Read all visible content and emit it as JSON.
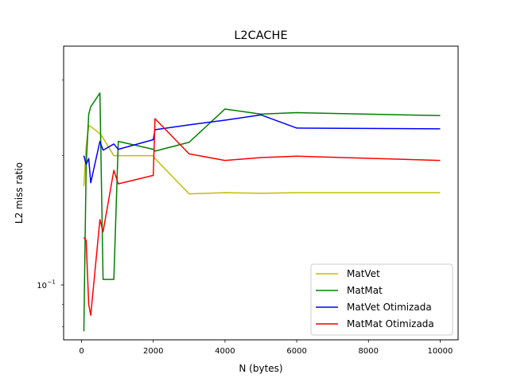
{
  "chart_data": {
    "type": "line",
    "title": "L2CACHE",
    "xlabel": "N (bytes)",
    "ylabel": "L2 miss ratio",
    "xlim": [
      -500,
      10500
    ],
    "ylim": [
      0.0745,
      0.36
    ],
    "yscale": "log",
    "x_ticks": [
      0,
      2000,
      4000,
      6000,
      8000,
      10000
    ],
    "x_tick_labels": [
      "0",
      "2000",
      "4000",
      "6000",
      "8000",
      "10000"
    ],
    "y_major_ticks": [
      0.1
    ],
    "y_major_tick_labels": [
      "10",
      "−1"
    ],
    "y_minor_ticks": [
      0.08,
      0.09,
      0.2,
      0.3
    ],
    "grid": false,
    "legend_position": "lower right",
    "x": [
      64,
      128,
      200,
      256,
      512,
      600,
      900,
      1024,
      2000,
      2048,
      3000,
      4000,
      5000,
      6000,
      10000
    ],
    "series": [
      {
        "name": "MatVet",
        "color": "#bfbf00",
        "values": [
          0.17,
          0.21,
          0.235,
          0.234,
          0.225,
          0.22,
          0.2,
          0.2,
          0.2,
          0.197,
          0.163,
          0.164,
          0.1635,
          0.164,
          0.164
        ]
      },
      {
        "name": "MatMat",
        "color": "#008000",
        "values": [
          0.078,
          0.19,
          0.25,
          0.26,
          0.28,
          0.103,
          0.103,
          0.216,
          0.207,
          0.205,
          0.215,
          0.257,
          0.25,
          0.252,
          0.248
        ]
      },
      {
        "name": "MatVet Otimizada",
        "color": "#0000ff",
        "values": [
          0.2,
          0.191,
          0.197,
          0.173,
          0.216,
          0.206,
          0.213,
          0.207,
          0.218,
          0.23,
          0.236,
          0.242,
          0.249,
          0.232,
          0.231
        ]
      },
      {
        "name": "MatMat Otimizada",
        "color": "#ff0000",
        "values": [
          0.129,
          0.127,
          0.09,
          0.085,
          0.142,
          0.133,
          0.185,
          0.172,
          0.18,
          0.244,
          0.202,
          0.195,
          0.198,
          0.1995,
          0.195
        ]
      }
    ]
  }
}
